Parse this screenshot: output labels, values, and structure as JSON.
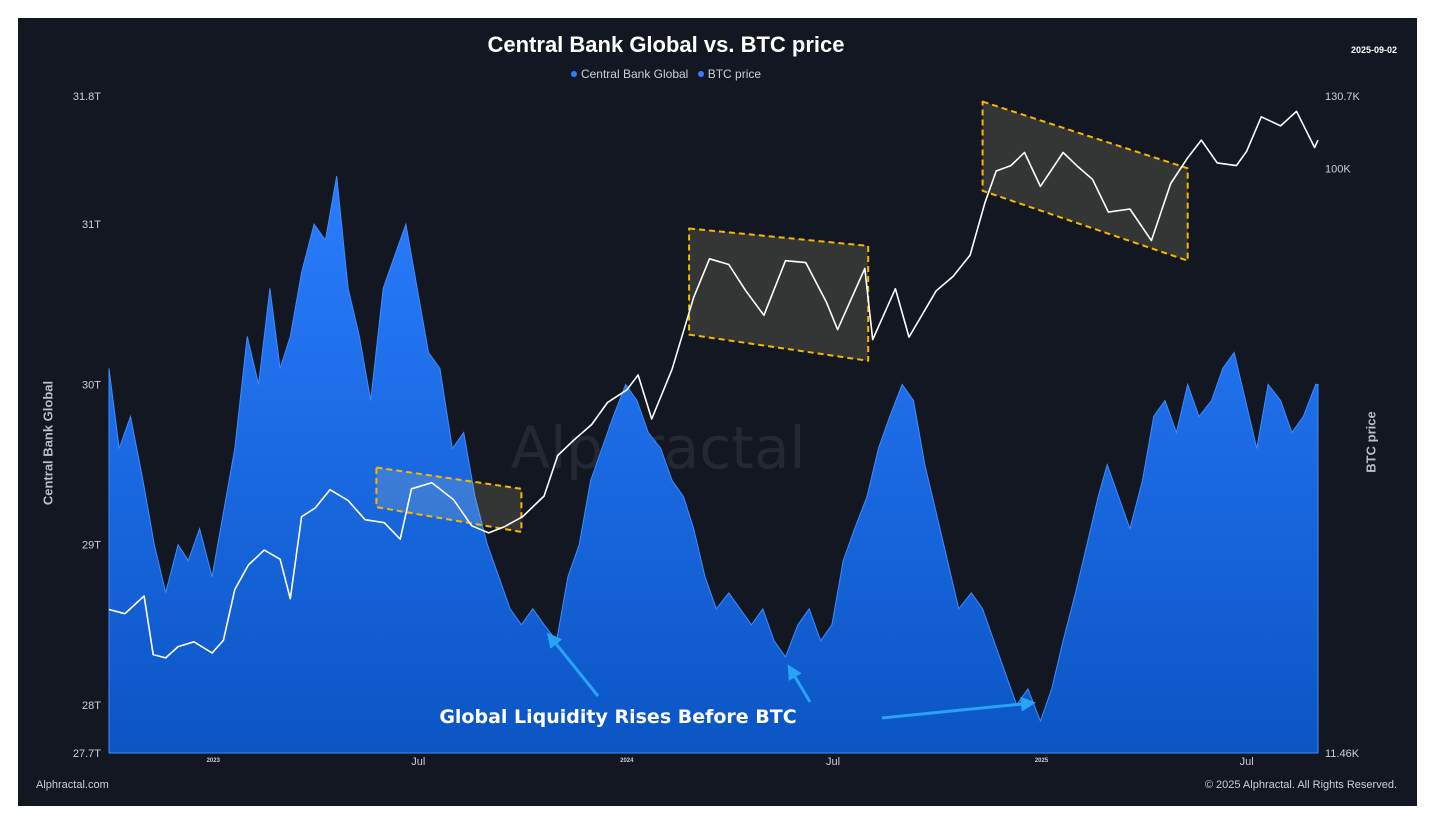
{
  "chart_data": {
    "type": "area",
    "title": "Central Bank Global vs. BTC price",
    "date_label": "2025-09-02",
    "legend": [
      {
        "label": "Central Bank Global",
        "color": "#2f80ff"
      },
      {
        "label": "BTC price",
        "color": "#3a7bff"
      }
    ],
    "y_left": {
      "label": "Central Bank Global",
      "range": [
        27.7,
        31.8
      ],
      "ticks": [
        {
          "v": 28,
          "label": "28T"
        },
        {
          "v": 29,
          "label": "29T"
        },
        {
          "v": 30,
          "label": "30T"
        },
        {
          "v": 31,
          "label": "31T"
        },
        {
          "v": 31.8,
          "label": "31.8T"
        }
      ],
      "min_label": "27.7T"
    },
    "y_right": {
      "label": "BTC price",
      "scale": "log",
      "range": [
        11460,
        130700
      ],
      "ticks": [
        {
          "v": 100000,
          "label": "100K"
        },
        {
          "v": 130700,
          "label": "130.7K"
        }
      ],
      "min_label": "11.46K"
    },
    "x_axis": {
      "range": [
        "2022-10-01",
        "2025-09-02"
      ],
      "ticks": [
        {
          "d": "2023-01-01",
          "label": "2023",
          "small": true
        },
        {
          "d": "2023-07-01",
          "label": "Jul",
          "small": false
        },
        {
          "d": "2024-01-01",
          "label": "2024",
          "small": true
        },
        {
          "d": "2024-07-01",
          "label": "Jul",
          "small": false
        },
        {
          "d": "2025-01-01",
          "label": "2025",
          "small": true
        },
        {
          "d": "2025-07-01",
          "label": "Jul",
          "small": false
        }
      ]
    },
    "series": [
      {
        "name": "Central Bank Global",
        "kind": "area",
        "color": "#2f80ff",
        "points": [
          [
            "2022-10-01",
            30.1
          ],
          [
            "2022-10-10",
            29.6
          ],
          [
            "2022-10-20",
            29.8
          ],
          [
            "2022-10-31",
            29.4
          ],
          [
            "2022-11-10",
            29.0
          ],
          [
            "2022-11-20",
            28.7
          ],
          [
            "2022-12-01",
            29.0
          ],
          [
            "2022-12-10",
            28.9
          ],
          [
            "2022-12-20",
            29.1
          ],
          [
            "2022-12-31",
            28.8
          ],
          [
            "2023-01-10",
            29.2
          ],
          [
            "2023-01-20",
            29.6
          ],
          [
            "2023-01-31",
            30.3
          ],
          [
            "2023-02-10",
            30.0
          ],
          [
            "2023-02-20",
            30.6
          ],
          [
            "2023-03-01",
            30.1
          ],
          [
            "2023-03-10",
            30.3
          ],
          [
            "2023-03-20",
            30.7
          ],
          [
            "2023-03-31",
            31.0
          ],
          [
            "2023-04-10",
            30.9
          ],
          [
            "2023-04-20",
            31.3
          ],
          [
            "2023-04-30",
            30.6
          ],
          [
            "2023-05-10",
            30.3
          ],
          [
            "2023-05-20",
            29.9
          ],
          [
            "2023-05-31",
            30.6
          ],
          [
            "2023-06-10",
            30.8
          ],
          [
            "2023-06-20",
            31.0
          ],
          [
            "2023-06-30",
            30.6
          ],
          [
            "2023-07-10",
            30.2
          ],
          [
            "2023-07-20",
            30.1
          ],
          [
            "2023-07-31",
            29.6
          ],
          [
            "2023-08-10",
            29.7
          ],
          [
            "2023-08-20",
            29.3
          ],
          [
            "2023-08-31",
            29.0
          ],
          [
            "2023-09-10",
            28.8
          ],
          [
            "2023-09-20",
            28.6
          ],
          [
            "2023-09-30",
            28.5
          ],
          [
            "2023-10-10",
            28.6
          ],
          [
            "2023-10-20",
            28.5
          ],
          [
            "2023-10-31",
            28.4
          ],
          [
            "2023-11-10",
            28.8
          ],
          [
            "2023-11-20",
            29.0
          ],
          [
            "2023-11-30",
            29.4
          ],
          [
            "2023-12-10",
            29.6
          ],
          [
            "2023-12-20",
            29.8
          ],
          [
            "2023-12-31",
            30.0
          ],
          [
            "2024-01-10",
            29.9
          ],
          [
            "2024-01-20",
            29.7
          ],
          [
            "2024-01-31",
            29.6
          ],
          [
            "2024-02-10",
            29.4
          ],
          [
            "2024-02-20",
            29.3
          ],
          [
            "2024-02-29",
            29.1
          ],
          [
            "2024-03-10",
            28.8
          ],
          [
            "2024-03-20",
            28.6
          ],
          [
            "2024-03-31",
            28.7
          ],
          [
            "2024-04-10",
            28.6
          ],
          [
            "2024-04-20",
            28.5
          ],
          [
            "2024-04-30",
            28.6
          ],
          [
            "2024-05-10",
            28.4
          ],
          [
            "2024-05-20",
            28.3
          ],
          [
            "2024-05-31",
            28.5
          ],
          [
            "2024-06-10",
            28.6
          ],
          [
            "2024-06-20",
            28.4
          ],
          [
            "2024-06-30",
            28.5
          ],
          [
            "2024-07-10",
            28.9
          ],
          [
            "2024-07-20",
            29.1
          ],
          [
            "2024-07-31",
            29.3
          ],
          [
            "2024-08-10",
            29.6
          ],
          [
            "2024-08-20",
            29.8
          ],
          [
            "2024-08-31",
            30.0
          ],
          [
            "2024-09-10",
            29.9
          ],
          [
            "2024-09-20",
            29.5
          ],
          [
            "2024-09-30",
            29.2
          ],
          [
            "2024-10-10",
            28.9
          ],
          [
            "2024-10-20",
            28.6
          ],
          [
            "2024-10-31",
            28.7
          ],
          [
            "2024-11-10",
            28.6
          ],
          [
            "2024-11-20",
            28.4
          ],
          [
            "2024-11-30",
            28.2
          ],
          [
            "2024-12-10",
            28.0
          ],
          [
            "2024-12-20",
            28.1
          ],
          [
            "2024-12-31",
            27.9
          ],
          [
            "2025-01-10",
            28.1
          ],
          [
            "2025-01-20",
            28.4
          ],
          [
            "2025-01-31",
            28.7
          ],
          [
            "2025-02-10",
            29.0
          ],
          [
            "2025-02-20",
            29.3
          ],
          [
            "2025-02-28",
            29.5
          ],
          [
            "2025-03-10",
            29.3
          ],
          [
            "2025-03-20",
            29.1
          ],
          [
            "2025-03-31",
            29.4
          ],
          [
            "2025-04-10",
            29.8
          ],
          [
            "2025-04-20",
            29.9
          ],
          [
            "2025-04-30",
            29.7
          ],
          [
            "2025-05-10",
            30.0
          ],
          [
            "2025-05-20",
            29.8
          ],
          [
            "2025-05-31",
            29.9
          ],
          [
            "2025-06-10",
            30.1
          ],
          [
            "2025-06-20",
            30.2
          ],
          [
            "2025-06-30",
            29.9
          ],
          [
            "2025-07-10",
            29.6
          ],
          [
            "2025-07-20",
            30.0
          ],
          [
            "2025-07-31",
            29.9
          ],
          [
            "2025-08-10",
            29.7
          ],
          [
            "2025-08-20",
            29.8
          ],
          [
            "2025-08-31",
            30.0
          ],
          [
            "2025-09-02",
            30.0
          ]
        ]
      },
      {
        "name": "BTC price",
        "kind": "line",
        "color": "#ffffff",
        "points": [
          [
            "2022-10-01",
            19500
          ],
          [
            "2022-10-15",
            19200
          ],
          [
            "2022-11-01",
            20500
          ],
          [
            "2022-11-09",
            16500
          ],
          [
            "2022-11-20",
            16300
          ],
          [
            "2022-12-01",
            17000
          ],
          [
            "2022-12-15",
            17300
          ],
          [
            "2022-12-31",
            16600
          ],
          [
            "2023-01-10",
            17400
          ],
          [
            "2023-01-20",
            21000
          ],
          [
            "2023-02-01",
            23000
          ],
          [
            "2023-02-15",
            24300
          ],
          [
            "2023-03-01",
            23500
          ],
          [
            "2023-03-10",
            20300
          ],
          [
            "2023-03-20",
            27500
          ],
          [
            "2023-04-01",
            28400
          ],
          [
            "2023-04-14",
            30400
          ],
          [
            "2023-04-30",
            29200
          ],
          [
            "2023-05-15",
            27200
          ],
          [
            "2023-06-01",
            26900
          ],
          [
            "2023-06-15",
            25300
          ],
          [
            "2023-06-25",
            30500
          ],
          [
            "2023-07-13",
            31200
          ],
          [
            "2023-08-01",
            29300
          ],
          [
            "2023-08-17",
            26600
          ],
          [
            "2023-09-01",
            25900
          ],
          [
            "2023-09-15",
            26500
          ],
          [
            "2023-10-01",
            27500
          ],
          [
            "2023-10-20",
            29700
          ],
          [
            "2023-11-01",
            34500
          ],
          [
            "2023-11-15",
            36500
          ],
          [
            "2023-12-01",
            38700
          ],
          [
            "2023-12-15",
            42000
          ],
          [
            "2024-01-01",
            44000
          ],
          [
            "2024-01-11",
            46500
          ],
          [
            "2024-01-23",
            39500
          ],
          [
            "2024-02-10",
            47500
          ],
          [
            "2024-02-29",
            62000
          ],
          [
            "2024-03-14",
            71500
          ],
          [
            "2024-03-31",
            70000
          ],
          [
            "2024-04-15",
            63500
          ],
          [
            "2024-05-01",
            58000
          ],
          [
            "2024-05-20",
            71000
          ],
          [
            "2024-06-07",
            70500
          ],
          [
            "2024-06-25",
            61000
          ],
          [
            "2024-07-05",
            55000
          ],
          [
            "2024-07-29",
            69000
          ],
          [
            "2024-08-05",
            53000
          ],
          [
            "2024-08-25",
            64000
          ],
          [
            "2024-09-06",
            53500
          ],
          [
            "2024-09-30",
            63500
          ],
          [
            "2024-10-15",
            67000
          ],
          [
            "2024-10-30",
            72500
          ],
          [
            "2024-11-12",
            88000
          ],
          [
            "2024-11-22",
            99000
          ],
          [
            "2024-12-05",
            101000
          ],
          [
            "2024-12-17",
            106000
          ],
          [
            "2024-12-31",
            93500
          ],
          [
            "2025-01-20",
            106000
          ],
          [
            "2025-02-01",
            101000
          ],
          [
            "2025-02-15",
            96000
          ],
          [
            "2025-03-01",
            85000
          ],
          [
            "2025-03-20",
            86000
          ],
          [
            "2025-04-08",
            76500
          ],
          [
            "2025-04-25",
            94500
          ],
          [
            "2025-05-10",
            104000
          ],
          [
            "2025-05-22",
            111000
          ],
          [
            "2025-06-05",
            102000
          ],
          [
            "2025-06-22",
            101000
          ],
          [
            "2025-07-01",
            106500
          ],
          [
            "2025-07-14",
            121000
          ],
          [
            "2025-07-31",
            117000
          ],
          [
            "2025-08-14",
            123500
          ],
          [
            "2025-08-30",
            108000
          ],
          [
            "2025-09-02",
            111000
          ]
        ]
      }
    ],
    "highlight_boxes": [
      {
        "from": "2023-05-25",
        "to": "2023-09-30",
        "from_y": [
          33000,
          28500
        ],
        "to_y": [
          30500,
          26000
        ]
      },
      {
        "from": "2024-02-25",
        "to": "2024-08-01",
        "from_y": [
          80000,
          54000
        ],
        "to_y": [
          75000,
          49000
        ]
      },
      {
        "from": "2024-11-10",
        "to": "2025-05-10",
        "from_y": [
          128000,
          92000
        ],
        "to_y": [
          100000,
          71000
        ]
      }
    ],
    "annotation": {
      "text": "Global Liquidity Rises Before BTC",
      "arrows_to": [
        {
          "d": "2023-10-25",
          "v": 28.5
        },
        {
          "d": "2024-05-25",
          "v": 28.3
        },
        {
          "d": "2024-12-20",
          "v": 28.0
        }
      ]
    }
  },
  "watermark": "Alphractal",
  "footer": {
    "source": "Alphractal.com",
    "copyright": "© 2025 Alphractal. All Rights Reserved."
  }
}
